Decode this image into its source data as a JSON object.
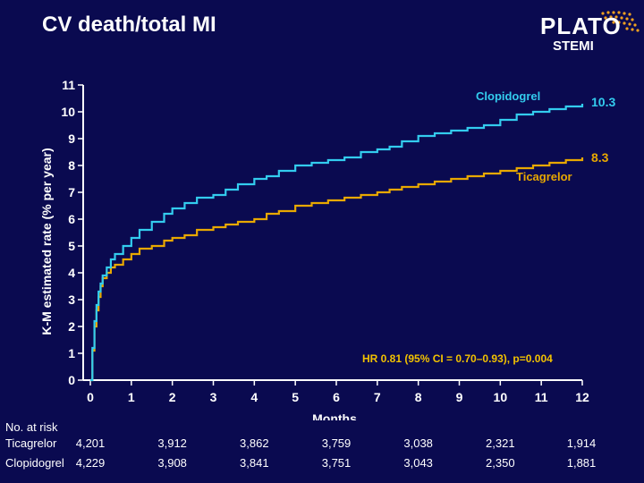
{
  "header": {
    "title": "CV death/total MI",
    "logo_word": "PLATO",
    "logo_sub": "STEMI"
  },
  "colors": {
    "background": "#0a0a50",
    "clopidogrel": "#33ccee",
    "ticagrelor": "#e8a800",
    "annotation": "#f2c200",
    "axis": "#ffffff"
  },
  "chart_data": {
    "type": "line",
    "step": true,
    "xlabel": "Months",
    "ylabel": "K-M estimated rate  (% per year)",
    "xlim": [
      0,
      12
    ],
    "ylim": [
      0,
      11
    ],
    "xticks": [
      0,
      1,
      2,
      3,
      4,
      5,
      6,
      7,
      8,
      9,
      10,
      11,
      12
    ],
    "yticks": [
      0,
      1,
      2,
      3,
      4,
      5,
      6,
      7,
      8,
      9,
      10,
      11
    ],
    "grid": false,
    "annotation": "HR 0.81 (95% CI = 0.70–0.93), p=0.004",
    "series": [
      {
        "name": "Clopidogrel",
        "end_label": "10.3",
        "color": "#33ccee",
        "x": [
          0,
          0.05,
          0.1,
          0.15,
          0.2,
          0.25,
          0.3,
          0.4,
          0.5,
          0.6,
          0.8,
          1.0,
          1.2,
          1.5,
          1.8,
          2.0,
          2.3,
          2.6,
          3.0,
          3.3,
          3.6,
          4.0,
          4.3,
          4.6,
          5.0,
          5.4,
          5.8,
          6.2,
          6.6,
          7.0,
          7.3,
          7.6,
          8.0,
          8.4,
          8.8,
          9.2,
          9.6,
          10.0,
          10.4,
          10.8,
          11.2,
          11.6,
          12.0
        ],
        "y": [
          0,
          1.2,
          2.2,
          2.8,
          3.3,
          3.6,
          3.9,
          4.2,
          4.5,
          4.7,
          5.0,
          5.3,
          5.6,
          5.9,
          6.2,
          6.4,
          6.6,
          6.8,
          6.9,
          7.1,
          7.3,
          7.5,
          7.6,
          7.8,
          8.0,
          8.1,
          8.2,
          8.3,
          8.5,
          8.6,
          8.7,
          8.9,
          9.1,
          9.2,
          9.3,
          9.4,
          9.5,
          9.7,
          9.9,
          10.0,
          10.1,
          10.2,
          10.3
        ]
      },
      {
        "name": "Ticagrelor",
        "end_label": "8.3",
        "color": "#e8a800",
        "x": [
          0,
          0.05,
          0.1,
          0.15,
          0.2,
          0.25,
          0.3,
          0.4,
          0.5,
          0.6,
          0.8,
          1.0,
          1.2,
          1.5,
          1.8,
          2.0,
          2.3,
          2.6,
          3.0,
          3.3,
          3.6,
          4.0,
          4.3,
          4.6,
          5.0,
          5.4,
          5.8,
          6.2,
          6.6,
          7.0,
          7.3,
          7.6,
          8.0,
          8.4,
          8.8,
          9.2,
          9.6,
          10.0,
          10.4,
          10.8,
          11.2,
          11.6,
          12.0
        ],
        "y": [
          0,
          1.1,
          2.0,
          2.6,
          3.1,
          3.5,
          3.8,
          4.0,
          4.2,
          4.3,
          4.5,
          4.7,
          4.9,
          5.0,
          5.2,
          5.3,
          5.4,
          5.6,
          5.7,
          5.8,
          5.9,
          6.0,
          6.2,
          6.3,
          6.5,
          6.6,
          6.7,
          6.8,
          6.9,
          7.0,
          7.1,
          7.2,
          7.3,
          7.4,
          7.5,
          7.6,
          7.7,
          7.8,
          7.9,
          8.0,
          8.1,
          8.2,
          8.3
        ]
      }
    ],
    "at_risk": {
      "heading": "No. at risk",
      "months": [
        0,
        2,
        4,
        6,
        8,
        10,
        12
      ],
      "rows": [
        {
          "label": "Ticagrelor",
          "values": [
            "4,201",
            "3,912",
            "3,862",
            "3,759",
            "3,038",
            "2,321",
            "1,914"
          ]
        },
        {
          "label": "Clopidogrel",
          "values": [
            "4,229",
            "3,908",
            "3,841",
            "3,751",
            "3,043",
            "2,350",
            "1,881"
          ]
        }
      ]
    }
  }
}
